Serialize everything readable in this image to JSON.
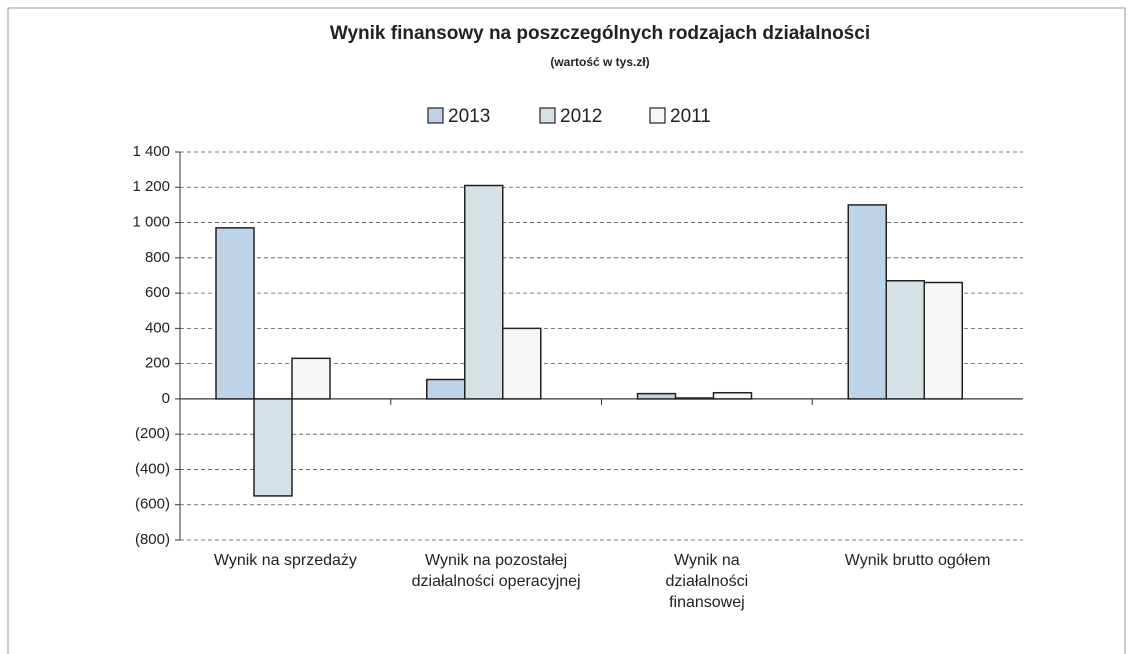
{
  "chart_data": {
    "type": "bar",
    "title": "Wynik finansowy na poszczególnych rodzajach działalności",
    "subtitle": "(wartość w tys.zł)",
    "categories": [
      "Wynik na sprzedaży",
      "Wynik na pozostałej działalności operacyjnej",
      "Wynik na działalności finansowej",
      "Wynik brutto ogółem"
    ],
    "series": [
      {
        "name": "2013",
        "color": "#bcd3e8",
        "values": [
          970,
          110,
          30,
          1100
        ]
      },
      {
        "name": "2012",
        "color": "#d5e1e5",
        "values": [
          -550,
          1210,
          5,
          670
        ]
      },
      {
        "name": "2011",
        "color": "#f7f7f7",
        "values": [
          230,
          400,
          35,
          660
        ]
      }
    ],
    "ylim": [
      -800,
      1400
    ],
    "yticks": [
      {
        "value": -800,
        "label": "(800)"
      },
      {
        "value": -600,
        "label": "(600)"
      },
      {
        "value": -400,
        "label": "(400)"
      },
      {
        "value": -200,
        "label": "(200)"
      },
      0,
      200,
      400,
      600,
      800,
      {
        "value": 1000,
        "label": "1 000"
      },
      {
        "value": 1200,
        "label": "1 200"
      },
      {
        "value": 1400,
        "label": "1 400"
      }
    ],
    "grid": true,
    "legend": "top"
  }
}
